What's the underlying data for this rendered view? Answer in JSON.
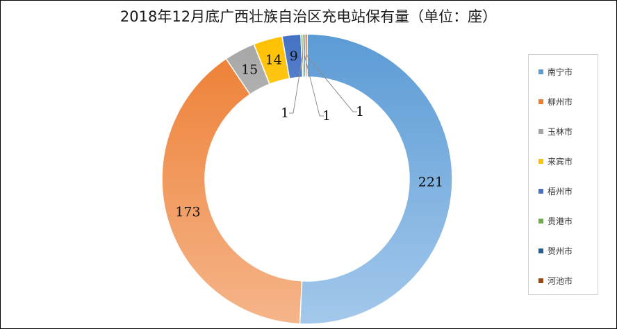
{
  "chart_data": {
    "type": "pie",
    "style": "doughnut",
    "title": "2018年12月底广西壮族自治区充电站保有量（单位：座）",
    "legend_position": "right",
    "categories": [
      "南宁市",
      "柳州市",
      "玉林市",
      "来宾市",
      "梧州市",
      "贵港市",
      "贺州市",
      "河池市"
    ],
    "values": [
      221,
      173,
      15,
      14,
      9,
      1,
      1,
      1
    ],
    "data_labels": [
      "221",
      "173",
      "15",
      "14",
      "9",
      "1",
      "1",
      "1"
    ],
    "colors": [
      "#5b9bd5",
      "#ed7d31",
      "#a5a5a5",
      "#ffc000",
      "#4472c4",
      "#70ad47",
      "#255e91",
      "#9e480e"
    ],
    "gradient_light": [
      "#a3c8eb",
      "#f5b58a",
      "#dcdcdc",
      "#ffe080",
      "#a8bde8",
      "#b5d99a",
      "#7aa3cf",
      "#d38a5a"
    ]
  }
}
